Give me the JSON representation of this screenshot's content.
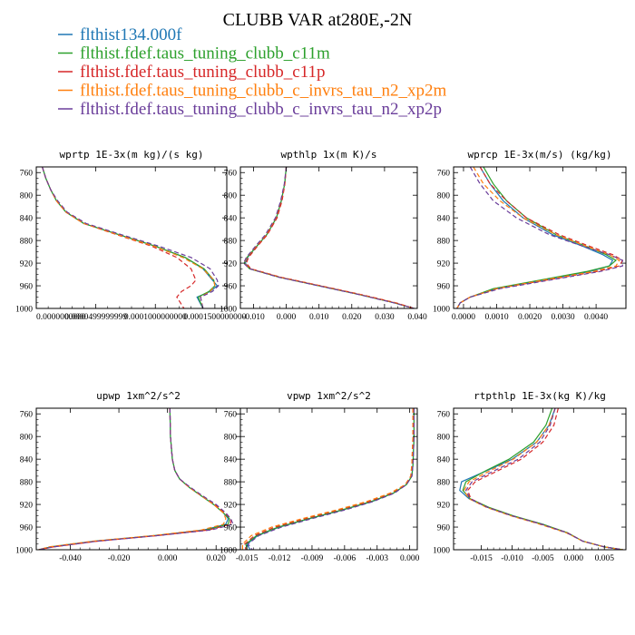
{
  "figure_title": "CLUBB VAR at280E,-2N",
  "legend": [
    {
      "label": "flthist134.000f",
      "color": "#1f77b4",
      "dash": "solid"
    },
    {
      "label": "flthist.fdef.taus_tuning_clubb_c11m",
      "color": "#2ca02c",
      "dash": "solid"
    },
    {
      "label": "flthist.fdef.taus_tuning_clubb_c11p",
      "color": "#d62728",
      "dash": "dashed"
    },
    {
      "label": "flthist.fdef.taus_tuning_clubb_c_invrs_tau_n2_xp2m",
      "color": "#ff7f0e",
      "dash": "dashed"
    },
    {
      "label": "flthist.fdef.taus_tuning_clubb_c_invrs_tau_n2_xp2p",
      "color": "#6a3d9a",
      "dash": "dashed"
    }
  ],
  "chart_data": [
    {
      "type": "line",
      "title": "wprtp  1E-3x(m kg)/(s kg)",
      "xlim": [
        0.0,
        0.00016
      ],
      "ylim": [
        1000,
        750
      ],
      "xticks": [
        0.0,
        5e-05,
        0.0001,
        0.00015
      ],
      "xtick_labels": [
        "0.0000000000",
        "0.0000499999999",
        "0.0001000000000",
        "0.0001500000000"
      ],
      "yticks": [
        760,
        800,
        840,
        880,
        920,
        960,
        1000
      ],
      "ytick_labels": [
        "760",
        "800",
        "840",
        "880",
        "920",
        "960",
        "1000"
      ],
      "y": [
        750,
        770,
        790,
        810,
        830,
        850,
        870,
        890,
        910,
        930,
        950,
        960,
        970,
        980,
        1000
      ],
      "series": [
        {
          "values": [
            5e-06,
            8e-06,
            1.2e-05,
            1.7e-05,
            2.5e-05,
            4e-05,
            7e-05,
            0.0001,
            0.000125,
            0.00014,
            0.000148,
            0.000152,
            0.000146,
            0.000135,
            0.00014
          ]
        },
        {
          "values": [
            5e-06,
            8e-06,
            1.2e-05,
            1.7e-05,
            2.5e-05,
            4e-05,
            7e-05,
            0.0001,
            0.000125,
            0.000141,
            0.000149,
            0.00015,
            0.000145,
            0.000136,
            0.00014
          ]
        },
        {
          "values": [
            5e-06,
            8e-06,
            1.2e-05,
            1.7e-05,
            2.5e-05,
            4e-05,
            6.8e-05,
            9.7e-05,
            0.000118,
            0.00013,
            0.000134,
            0.00013,
            0.000122,
            0.000118,
            0.000124
          ]
        },
        {
          "values": [
            5e-06,
            8e-06,
            1.2e-05,
            1.7e-05,
            2.5e-05,
            4e-05,
            6.9e-05,
            9.9e-05,
            0.000123,
            0.00014,
            0.000149,
            0.00015,
            0.000146,
            0.000138,
            0.00014
          ]
        },
        {
          "values": [
            5e-06,
            8e-06,
            1.2e-05,
            1.8e-05,
            2.6e-05,
            4.2e-05,
            7.2e-05,
            0.000103,
            0.00013,
            0.000146,
            0.000152,
            0.000153,
            0.000148,
            0.000138,
            0.00014
          ]
        }
      ]
    },
    {
      "type": "line",
      "title": "wpthlp  1x(m K)/s",
      "xlim": [
        -0.014,
        0.04
      ],
      "ylim": [
        1000,
        750
      ],
      "xticks": [
        -0.01,
        0.0,
        0.01,
        0.02,
        0.03,
        0.04
      ],
      "xtick_labels": [
        "-0.010",
        "0.000",
        "0.010",
        "0.020",
        "0.030",
        "0.040"
      ],
      "yticks": [
        760,
        800,
        840,
        880,
        920,
        960,
        1000
      ],
      "ytick_labels": [
        "760",
        "800",
        "840",
        "880",
        "920",
        "960",
        "1000"
      ],
      "y": [
        750,
        780,
        810,
        840,
        870,
        890,
        910,
        920,
        930,
        945,
        960,
        975,
        990,
        1000
      ],
      "series": [
        {
          "values": [
            0.0,
            -0.0005,
            -0.0015,
            -0.003,
            -0.006,
            -0.009,
            -0.0118,
            -0.0125,
            -0.011,
            -0.002,
            0.01,
            0.022,
            0.033,
            0.039
          ]
        },
        {
          "values": [
            0.0,
            -0.0005,
            -0.0015,
            -0.003,
            -0.006,
            -0.009,
            -0.012,
            -0.0128,
            -0.0112,
            -0.002,
            0.01,
            0.022,
            0.033,
            0.039
          ]
        },
        {
          "values": [
            0.0,
            -0.0004,
            -0.0013,
            -0.0028,
            -0.0058,
            -0.0088,
            -0.0115,
            -0.0122,
            -0.0108,
            -0.0015,
            0.0105,
            0.0225,
            0.0335,
            0.039
          ]
        },
        {
          "values": [
            0.0,
            -0.0005,
            -0.0016,
            -0.0032,
            -0.0062,
            -0.0092,
            -0.0121,
            -0.0128,
            -0.011,
            -0.0018,
            0.0102,
            0.0222,
            0.0332,
            0.039
          ]
        },
        {
          "values": [
            0.0,
            -0.0006,
            -0.0017,
            -0.0033,
            -0.0064,
            -0.0094,
            -0.0122,
            -0.013,
            -0.0112,
            -0.0022,
            0.0098,
            0.0218,
            0.0328,
            0.039
          ]
        }
      ]
    },
    {
      "type": "line",
      "title": "wprcp  1E-3x(m/s) (kg/kg)",
      "xlim": [
        -0.0003,
        0.0049
      ],
      "ylim": [
        1000,
        750
      ],
      "xticks": [
        0.0,
        0.001,
        0.002,
        0.003,
        0.004
      ],
      "xtick_labels": [
        "0.0000",
        "0.0010",
        "0.0020",
        "0.0030",
        "0.0040"
      ],
      "yticks": [
        760,
        800,
        840,
        880,
        920,
        960,
        1000
      ],
      "ytick_labels": [
        "760",
        "800",
        "840",
        "880",
        "920",
        "960",
        "1000"
      ],
      "y": [
        750,
        780,
        810,
        840,
        870,
        890,
        905,
        915,
        925,
        935,
        950,
        965,
        980,
        990,
        1000
      ],
      "series": [
        {
          "values": [
            0.0005,
            0.0008,
            0.0012,
            0.0018,
            0.0027,
            0.0036,
            0.0042,
            0.0045,
            0.0044,
            0.0038,
            0.0024,
            0.001,
            0.0002,
            -0.0001,
            -0.0002
          ]
        },
        {
          "values": [
            0.0006,
            0.0009,
            0.0013,
            0.0019,
            0.0028,
            0.0037,
            0.0043,
            0.0046,
            0.0044,
            0.0037,
            0.0023,
            0.0009,
            0.0002,
            -0.0001,
            -0.0002
          ]
        },
        {
          "values": [
            0.0005,
            0.0008,
            0.0013,
            0.0019,
            0.0029,
            0.0038,
            0.0045,
            0.0048,
            0.0047,
            0.004,
            0.0025,
            0.001,
            0.0002,
            -0.0001,
            -0.0002
          ]
        },
        {
          "values": [
            0.0003,
            0.0006,
            0.0011,
            0.0018,
            0.0028,
            0.0037,
            0.0044,
            0.0047,
            0.0046,
            0.0039,
            0.0024,
            0.001,
            0.0002,
            -0.0001,
            -0.0002
          ]
        },
        {
          "values": [
            0.0002,
            0.0005,
            0.0009,
            0.0016,
            0.0026,
            0.0036,
            0.0044,
            0.0048,
            0.0048,
            0.0041,
            0.0026,
            0.0011,
            0.0002,
            -0.0001,
            -0.0002
          ]
        }
      ]
    },
    {
      "type": "line",
      "title": "upwp  1xm^2/s^2",
      "xlim": [
        -0.054,
        0.03
      ],
      "ylim": [
        1000,
        750
      ],
      "xticks": [
        -0.04,
        -0.02,
        0.0,
        0.02
      ],
      "xtick_labels": [
        "-0.040",
        "-0.020",
        "0.000",
        "0.020"
      ],
      "yticks": [
        760,
        800,
        840,
        880,
        920,
        960,
        1000
      ],
      "ytick_labels": [
        "760",
        "800",
        "840",
        "880",
        "920",
        "960",
        "1000"
      ],
      "y": [
        750,
        800,
        840,
        860,
        875,
        890,
        905,
        920,
        935,
        945,
        955,
        965,
        975,
        985,
        995,
        1000
      ],
      "series": [
        {
          "values": [
            0.001,
            0.0012,
            0.002,
            0.003,
            0.005,
            0.009,
            0.014,
            0.019,
            0.023,
            0.025,
            0.024,
            0.015,
            -0.005,
            -0.03,
            -0.048,
            -0.053
          ]
        },
        {
          "values": [
            0.001,
            0.0012,
            0.002,
            0.003,
            0.005,
            0.009,
            0.014,
            0.019,
            0.023,
            0.0255,
            0.025,
            0.016,
            -0.005,
            -0.03,
            -0.048,
            -0.053
          ]
        },
        {
          "values": [
            0.001,
            0.0012,
            0.002,
            0.003,
            0.005,
            0.009,
            0.0145,
            0.0195,
            0.0235,
            0.026,
            0.026,
            0.017,
            -0.004,
            -0.029,
            -0.047,
            -0.053
          ]
        },
        {
          "values": [
            0.001,
            0.0012,
            0.002,
            0.003,
            0.005,
            0.009,
            0.014,
            0.019,
            0.023,
            0.024,
            0.023,
            0.014,
            -0.006,
            -0.031,
            -0.049,
            -0.053
          ]
        },
        {
          "values": [
            0.001,
            0.0012,
            0.002,
            0.003,
            0.005,
            0.0095,
            0.0145,
            0.02,
            0.024,
            0.026,
            0.027,
            0.018,
            -0.004,
            -0.029,
            -0.047,
            -0.053
          ]
        }
      ]
    },
    {
      "type": "line",
      "title": "vpwp  1xm^2/s^2",
      "xlim": [
        -0.0156,
        0.0007
      ],
      "ylim": [
        1000,
        750
      ],
      "xticks": [
        -0.015,
        -0.012,
        -0.009,
        -0.006,
        -0.003,
        0.0
      ],
      "xtick_labels": [
        "-0.015",
        "-0.012",
        "-0.009",
        "-0.006",
        "-0.003",
        "0.000"
      ],
      "yticks": [
        760,
        800,
        840,
        880,
        920,
        960,
        1000
      ],
      "ytick_labels": [
        "760",
        "800",
        "840",
        "880",
        "920",
        "960",
        "1000"
      ],
      "y": [
        750,
        800,
        850,
        870,
        885,
        900,
        915,
        930,
        945,
        960,
        975,
        990,
        1000
      ],
      "series": [
        {
          "values": [
            0.0004,
            0.0004,
            0.0003,
            0.0002,
            -0.0003,
            -0.0015,
            -0.0035,
            -0.0062,
            -0.0092,
            -0.012,
            -0.014,
            -0.015,
            -0.0147
          ]
        },
        {
          "values": [
            0.0004,
            0.0004,
            0.0003,
            0.0002,
            -0.0003,
            -0.0015,
            -0.0036,
            -0.0063,
            -0.0093,
            -0.0121,
            -0.0141,
            -0.0151,
            -0.015
          ]
        },
        {
          "values": [
            0.0003,
            0.0003,
            0.0002,
            0.0001,
            -0.0004,
            -0.0017,
            -0.0038,
            -0.0066,
            -0.0096,
            -0.0124,
            -0.0143,
            -0.0152,
            -0.0151
          ]
        },
        {
          "values": [
            0.0003,
            0.0003,
            0.0002,
            0.0001,
            -0.0004,
            -0.0018,
            -0.004,
            -0.0068,
            -0.0099,
            -0.0127,
            -0.0146,
            -0.0154,
            -0.0154
          ]
        },
        {
          "values": [
            0.0004,
            0.0004,
            0.0003,
            0.0002,
            -0.0003,
            -0.0014,
            -0.0034,
            -0.006,
            -0.009,
            -0.0118,
            -0.0139,
            -0.0149,
            -0.0145
          ]
        }
      ]
    },
    {
      "type": "line",
      "title": "rtpthlp  1E-3x(kg K)/kg",
      "xlim": [
        -0.0195,
        0.0085
      ],
      "ylim": [
        1000,
        750
      ],
      "xticks": [
        -0.015,
        -0.01,
        -0.005,
        0.0,
        0.005
      ],
      "xtick_labels": [
        "-0.015",
        "-0.010",
        "-0.005",
        "0.000",
        "0.005"
      ],
      "yticks": [
        760,
        800,
        840,
        880,
        920,
        960,
        1000
      ],
      "ytick_labels": [
        "760",
        "800",
        "840",
        "880",
        "920",
        "960",
        "1000"
      ],
      "y": [
        750,
        780,
        810,
        840,
        860,
        880,
        895,
        910,
        925,
        940,
        955,
        970,
        985,
        995,
        1000
      ],
      "series": [
        {
          "values": [
            -0.003,
            -0.004,
            -0.006,
            -0.01,
            -0.014,
            -0.0182,
            -0.0185,
            -0.017,
            -0.014,
            -0.01,
            -0.005,
            -0.001,
            0.0015,
            0.005,
            0.008
          ]
        },
        {
          "values": [
            -0.0035,
            -0.0045,
            -0.0065,
            -0.0105,
            -0.0142,
            -0.0175,
            -0.018,
            -0.0168,
            -0.0138,
            -0.0098,
            -0.005,
            -0.001,
            0.0015,
            0.005,
            0.008
          ]
        },
        {
          "values": [
            -0.0025,
            -0.0032,
            -0.005,
            -0.0085,
            -0.0122,
            -0.016,
            -0.0172,
            -0.0167,
            -0.014,
            -0.01,
            -0.0052,
            -0.001,
            0.0015,
            0.005,
            0.008
          ]
        },
        {
          "values": [
            -0.003,
            -0.004,
            -0.006,
            -0.0098,
            -0.0135,
            -0.017,
            -0.0178,
            -0.017,
            -0.0142,
            -0.0102,
            -0.0055,
            -0.0012,
            0.0015,
            0.005,
            0.008
          ]
        },
        {
          "values": [
            -0.003,
            -0.0038,
            -0.0055,
            -0.009,
            -0.0128,
            -0.0165,
            -0.0175,
            -0.0168,
            -0.014,
            -0.01,
            -0.0052,
            -0.0011,
            0.0015,
            0.005,
            0.008
          ]
        }
      ]
    }
  ]
}
